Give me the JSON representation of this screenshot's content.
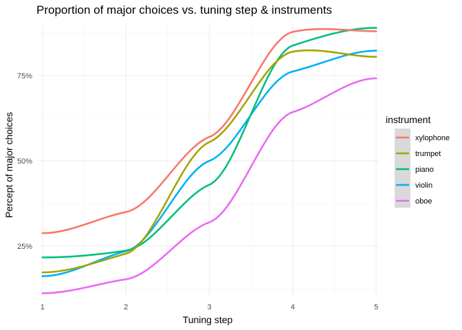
{
  "chart_data": {
    "type": "line",
    "title": "Proportion of major choices vs. tuning step & instruments",
    "xlabel": "Tuning step",
    "ylabel": "Percept of major choices",
    "x": [
      1,
      2,
      3,
      4,
      5
    ],
    "xlim": [
      0.96,
      5.04
    ],
    "ylim": [
      0.105,
      0.905
    ],
    "y_ticks": [
      0.25,
      0.5,
      0.75
    ],
    "y_tick_labels": [
      "25%",
      "50%",
      "75%"
    ],
    "x_tick_labels": [
      "1",
      "2",
      "3",
      "4",
      "5"
    ],
    "grid": true,
    "legend": {
      "title": "instrument",
      "position": "right"
    },
    "series": [
      {
        "name": "xylophone",
        "color": "#F8766D",
        "values": [
          0.288,
          0.35,
          0.57,
          0.878,
          0.88
        ]
      },
      {
        "name": "trumpet",
        "color": "#A3A500",
        "values": [
          0.173,
          0.228,
          0.555,
          0.82,
          0.805
        ]
      },
      {
        "name": "piano",
        "color": "#00BF7D",
        "values": [
          0.217,
          0.237,
          0.43,
          0.838,
          0.89
        ]
      },
      {
        "name": "violin",
        "color": "#00B0F6",
        "values": [
          0.162,
          0.235,
          0.5,
          0.762,
          0.823
        ]
      },
      {
        "name": "oboe",
        "color": "#E76BF3",
        "values": [
          0.112,
          0.153,
          0.32,
          0.643,
          0.742
        ]
      }
    ]
  }
}
